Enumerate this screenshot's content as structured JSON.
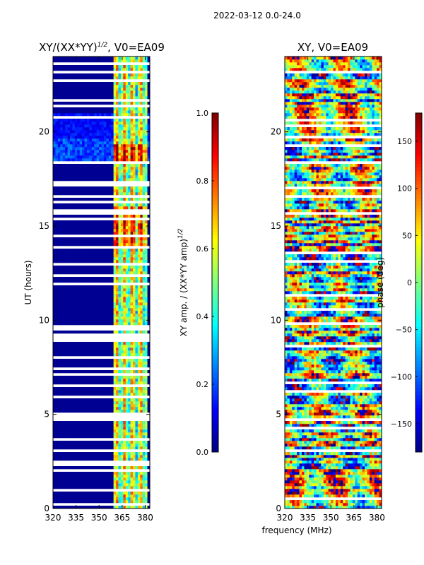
{
  "suptitle": "2022-03-12 0.0-24.0",
  "xlabel_shared": "frequency (MHz)",
  "chart_data": [
    {
      "type": "heatmap",
      "title": "XY/(XX*YY)^1/2, V0=EA09",
      "title_main": "XY/(XX*YY)",
      "title_sup": "1/2",
      "title_tail": ", V0=EA09",
      "ylabel": "UT (hours)",
      "xlim": [
        320,
        383
      ],
      "ylim": [
        0,
        24
      ],
      "xticks": [
        320,
        335,
        350,
        365,
        380
      ],
      "yticks": [
        0,
        5,
        10,
        15,
        20
      ],
      "active_band_MHz": [
        360,
        381
      ],
      "colorbar": {
        "label_main": "XY amp. / (XX*YY amp)",
        "label_sup": "1/2",
        "min": 0.0,
        "max": 1.0,
        "ticks": [
          "0.0",
          "0.2",
          "0.4",
          "0.6",
          "0.8",
          "1.0"
        ],
        "tick_values": [
          0.0,
          0.2,
          0.4,
          0.6,
          0.8,
          1.0
        ],
        "colormap": "jet"
      }
    },
    {
      "type": "heatmap",
      "title": "XY, V0=EA09",
      "ylabel": "",
      "xlim": [
        320,
        383
      ],
      "ylim": [
        0,
        24
      ],
      "xticks": [
        320,
        335,
        350,
        365,
        380
      ],
      "yticks": [
        0,
        5,
        10,
        15,
        20
      ],
      "colorbar": {
        "label": "phase (deg)",
        "min": -180,
        "max": 180,
        "ticks": [
          "−150",
          "−100",
          "−50",
          "0",
          "50",
          "100",
          "150"
        ],
        "tick_values": [
          -150,
          -100,
          -50,
          0,
          50,
          100,
          150
        ],
        "colormap": "jet"
      }
    }
  ],
  "colors": {
    "jet_stops": [
      "#00007f",
      "#0000ff",
      "#007fff",
      "#00ffff",
      "#7fff7f",
      "#ffff00",
      "#ff7f00",
      "#ff0000",
      "#7f0000"
    ],
    "background": "#ffffff"
  }
}
